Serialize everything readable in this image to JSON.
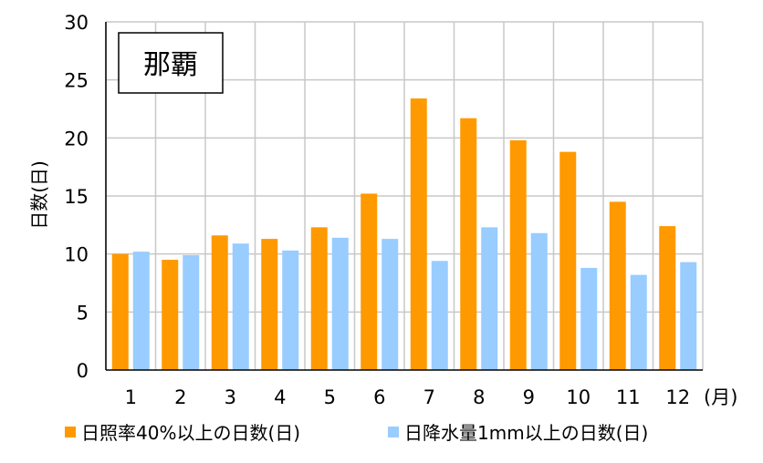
{
  "chart_data": {
    "type": "bar",
    "title": "那覇",
    "ylabel": "日数(日)",
    "xlabel": "",
    "x_unit": "(月)",
    "categories": [
      "1",
      "2",
      "3",
      "4",
      "5",
      "6",
      "7",
      "8",
      "9",
      "10",
      "11",
      "12"
    ],
    "ylim": [
      0,
      30
    ],
    "yticks": [
      0,
      5,
      10,
      15,
      20,
      25,
      30
    ],
    "grid": true,
    "legend_position": "bottom",
    "series": [
      {
        "name": "日照率40%以上の日数(日)",
        "color": "#FF9900",
        "values": [
          10.0,
          9.5,
          11.6,
          11.3,
          12.3,
          15.2,
          23.4,
          21.7,
          19.8,
          18.8,
          14.5,
          12.4
        ]
      },
      {
        "name": "日降水量1mm以上の日数(日)",
        "color": "#99CCFF",
        "values": [
          10.2,
          9.9,
          10.9,
          10.3,
          11.4,
          11.3,
          9.4,
          12.3,
          11.8,
          8.8,
          8.2,
          9.3
        ]
      }
    ]
  }
}
